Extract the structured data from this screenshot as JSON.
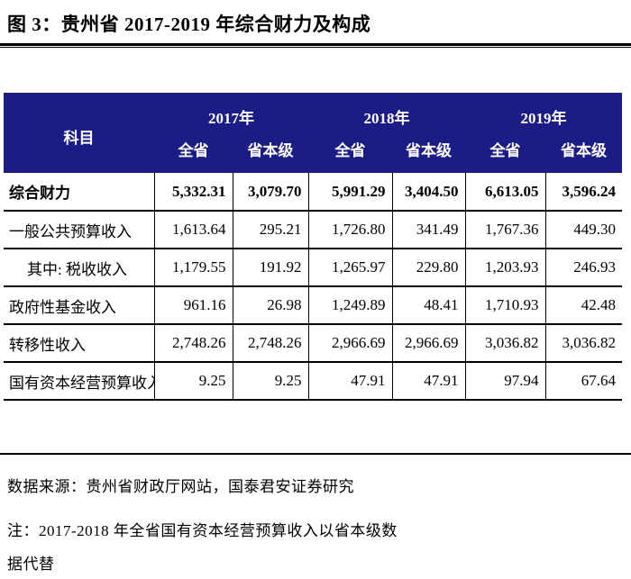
{
  "title": "图 3：贵州省 2017-2019 年综合财力及构成",
  "table": {
    "subject_header": "科目",
    "year_groups": [
      {
        "year": "2017年",
        "cols": [
          "全省",
          "省本级"
        ]
      },
      {
        "year": "2018年",
        "cols": [
          "全省",
          "省本级"
        ]
      },
      {
        "year": "2019年",
        "cols": [
          "全省",
          "省本级"
        ]
      }
    ],
    "rows": [
      {
        "label": "综合财力",
        "bold": true,
        "indent": false,
        "values": [
          "5,332.31",
          "3,079.70",
          "5,991.29",
          "3,404.50",
          "6,613.05",
          "3,596.24"
        ]
      },
      {
        "label": "一般公共预算收入",
        "bold": false,
        "indent": false,
        "values": [
          "1,613.64",
          "295.21",
          "1,726.80",
          "341.49",
          "1,767.36",
          "449.30"
        ]
      },
      {
        "label": "其中: 税收收入",
        "bold": false,
        "indent": true,
        "values": [
          "1,179.55",
          "191.92",
          "1,265.97",
          "229.80",
          "1,203.93",
          "246.93"
        ]
      },
      {
        "label": "政府性基金收入",
        "bold": false,
        "indent": false,
        "values": [
          "961.16",
          "26.98",
          "1,249.89",
          "48.41",
          "1,710.93",
          "42.48"
        ]
      },
      {
        "label": "转移性收入",
        "bold": false,
        "indent": false,
        "values": [
          "2,748.26",
          "2,748.26",
          "2,966.69",
          "2,966.69",
          "3,036.82",
          "3,036.82"
        ]
      },
      {
        "label": "国有资本经营预算收入",
        "bold": false,
        "indent": false,
        "values": [
          "9.25",
          "9.25",
          "47.91",
          "47.91",
          "97.94",
          "67.64"
        ]
      }
    ]
  },
  "footer": {
    "source": "数据来源：贵州省财政厅网站，国泰君安证券研究",
    "note_lines": [
      "注：2017-2018 年全省国有资本经营预算收入以省本级数",
      "据代替"
    ],
    "note_full": "注：2017-2018 年全省国有资本经营预算收入以省本级数据代替"
  },
  "colors": {
    "header_bg": "#1c1c87",
    "header_text": "#ffffff",
    "rule": "#000000"
  }
}
